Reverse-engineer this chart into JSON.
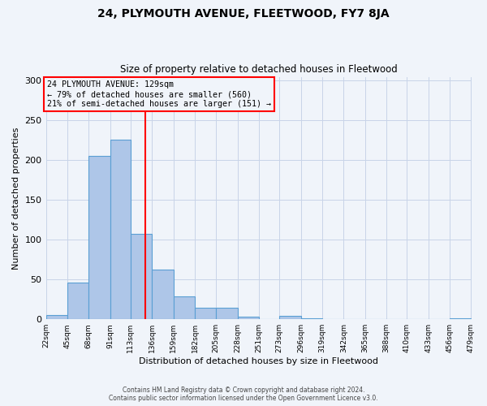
{
  "title": "24, PLYMOUTH AVENUE, FLEETWOOD, FY7 8JA",
  "subtitle": "Size of property relative to detached houses in Fleetwood",
  "xlabel": "Distribution of detached houses by size in Fleetwood",
  "ylabel": "Number of detached properties",
  "bar_edges": [
    22,
    45,
    68,
    91,
    113,
    136,
    159,
    182,
    205,
    228,
    251,
    273,
    296,
    319,
    342,
    365,
    388,
    410,
    433,
    456,
    479
  ],
  "bar_heights": [
    5,
    46,
    205,
    226,
    107,
    63,
    29,
    15,
    14,
    3,
    0,
    4,
    1,
    0,
    0,
    0,
    0,
    0,
    0,
    1
  ],
  "bar_color": "#aec6e8",
  "bar_edgecolor": "#5a9fd4",
  "property_line_x": 129,
  "property_line_color": "red",
  "annotation_title": "24 PLYMOUTH AVENUE: 129sqm",
  "annotation_line1": "← 79% of detached houses are smaller (560)",
  "annotation_line2": "21% of semi-detached houses are larger (151) →",
  "annotation_box_edgecolor": "red",
  "ylim": [
    0,
    305
  ],
  "yticks": [
    0,
    50,
    100,
    150,
    200,
    250,
    300
  ],
  "tick_labels": [
    "22sqm",
    "45sqm",
    "68sqm",
    "91sqm",
    "113sqm",
    "136sqm",
    "159sqm",
    "182sqm",
    "205sqm",
    "228sqm",
    "251sqm",
    "273sqm",
    "296sqm",
    "319sqm",
    "342sqm",
    "365sqm",
    "388sqm",
    "410sqm",
    "433sqm",
    "456sqm",
    "479sqm"
  ],
  "footer1": "Contains HM Land Registry data © Crown copyright and database right 2024.",
  "footer2": "Contains public sector information licensed under the Open Government Licence v3.0.",
  "bg_color": "#f0f4fa",
  "grid_color": "#c8d4e8"
}
